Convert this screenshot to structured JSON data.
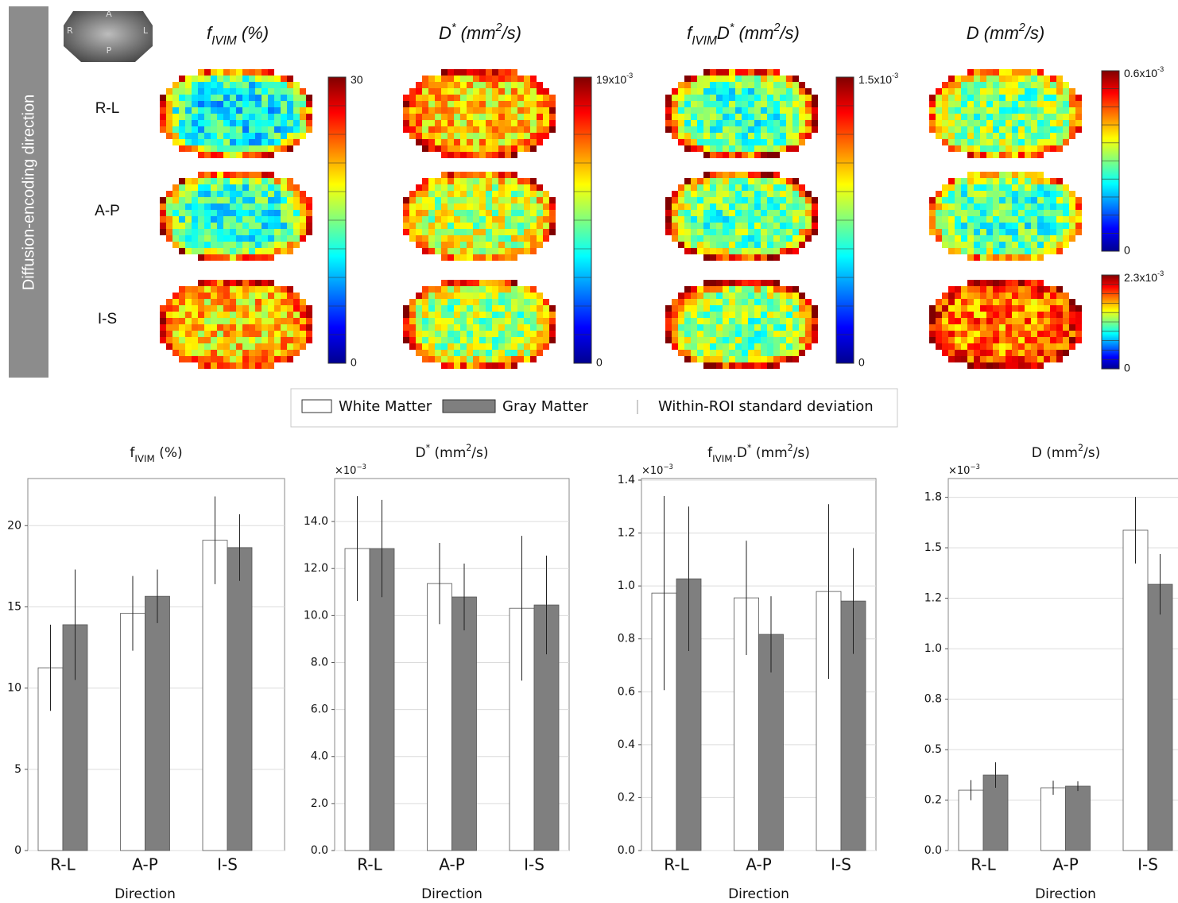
{
  "header": {
    "axis_label": "Diffusion-encoding direction",
    "orientation": {
      "anterior": "A",
      "posterior": "P",
      "right": "R",
      "left": "L"
    }
  },
  "maps": {
    "rows": [
      "R-L",
      "A-P",
      "I-S"
    ],
    "columns": [
      {
        "title": [
          {
            "text": "f"
          },
          {
            "text": "IVIM",
            "style": "sub"
          },
          {
            "text": " (%)"
          }
        ],
        "colorbars": [
          {
            "max": [
              {
                "text": "30"
              }
            ],
            "min": "0"
          }
        ]
      },
      {
        "title": [
          {
            "text": "D"
          },
          {
            "text": "*",
            "style": "sup"
          },
          {
            "text": " (mm"
          },
          {
            "text": "2",
            "style": "sup"
          },
          {
            "text": "/s)"
          }
        ],
        "colorbars": [
          {
            "max": [
              {
                "text": "19x10"
              },
              {
                "text": "-3",
                "style": "sup"
              }
            ],
            "min": "0"
          }
        ]
      },
      {
        "title": [
          {
            "text": "f"
          },
          {
            "text": "IVIM",
            "style": "sub"
          },
          {
            "text": "D"
          },
          {
            "text": "*",
            "style": "sup"
          },
          {
            "text": " (mm"
          },
          {
            "text": "2",
            "style": "sup"
          },
          {
            "text": "/s)"
          }
        ],
        "colorbars": [
          {
            "max": [
              {
                "text": "1.5x10"
              },
              {
                "text": "-3",
                "style": "sup"
              }
            ],
            "min": "0"
          }
        ]
      },
      {
        "title": [
          {
            "text": "D (mm"
          },
          {
            "text": "2",
            "style": "sup"
          },
          {
            "text": "/s)"
          }
        ],
        "colorbars": [
          {
            "max": [
              {
                "text": "0.6x10"
              },
              {
                "text": "-3",
                "style": "sup"
              }
            ],
            "min": "0"
          },
          {
            "max": [
              {
                "text": "2.3x10"
              },
              {
                "text": "-3",
                "style": "sup"
              }
            ],
            "min": "0"
          }
        ]
      }
    ]
  },
  "legend": {
    "names": [
      "White Matter",
      "Gray Matter"
    ],
    "error_label": "Within-ROI standard deviation"
  },
  "chart_data": [
    {
      "type": "bar",
      "title": [
        {
          "text": "f"
        },
        {
          "text": "IVIM",
          "style": "sub"
        },
        {
          "text": " (%)"
        }
      ],
      "xlabel": "Direction",
      "categories": [
        "R-L",
        "A-P",
        "I-S"
      ],
      "series": [
        {
          "color": "#ffffff",
          "values": [
            11.25,
            14.6,
            19.1
          ],
          "errors": [
            2.65,
            2.3,
            2.7
          ]
        },
        {
          "color": "#7f7f7f",
          "values": [
            13.9,
            15.65,
            18.65
          ],
          "errors": [
            3.4,
            1.65,
            2.05
          ]
        }
      ],
      "ylim": [
        0,
        22.9
      ],
      "yticks": [
        0,
        5,
        10,
        15,
        20
      ],
      "grid": true
    },
    {
      "type": "bar",
      "title": [
        {
          "text": "D"
        },
        {
          "text": "*",
          "style": "sup"
        },
        {
          "text": " (mm"
        },
        {
          "text": "2",
          "style": "sup"
        },
        {
          "text": "/s)"
        }
      ],
      "offset_label": [
        {
          "text": "×10"
        },
        {
          "text": "−3",
          "style": "sup"
        }
      ],
      "xlabel": "Direction",
      "categories": [
        "R-L",
        "A-P",
        "I-S"
      ],
      "series": [
        {
          "color": "#ffffff",
          "values": [
            12.85,
            11.36,
            10.31
          ],
          "errors": [
            2.23,
            1.73,
            3.08
          ]
        },
        {
          "color": "#7f7f7f",
          "values": [
            12.85,
            10.79,
            10.45
          ],
          "errors": [
            2.07,
            1.42,
            2.1
          ]
        }
      ],
      "ylim": [
        0,
        15.83
      ],
      "yticks": [
        {
          "value": 0,
          "label": "0.0"
        },
        {
          "value": 2,
          "label": "2.0"
        },
        {
          "value": 4,
          "label": "4.0"
        },
        {
          "value": 6,
          "label": "6.0"
        },
        {
          "value": 8,
          "label": "8.0"
        },
        {
          "value": 10,
          "label": "10.0"
        },
        {
          "value": 12,
          "label": "12.0"
        },
        {
          "value": 14,
          "label": "14.0"
        }
      ],
      "grid": true
    },
    {
      "type": "bar",
      "title": [
        {
          "text": "f"
        },
        {
          "text": "IVIM",
          "style": "sub"
        },
        {
          "text": ".D"
        },
        {
          "text": "*",
          "style": "sup"
        },
        {
          "text": " (mm"
        },
        {
          "text": "2",
          "style": "sup"
        },
        {
          "text": "/s)"
        }
      ],
      "offset_label": [
        {
          "text": "×10"
        },
        {
          "text": "−3",
          "style": "sup"
        }
      ],
      "xlabel": "Direction",
      "categories": [
        "R-L",
        "A-P",
        "I-S"
      ],
      "series": [
        {
          "color": "#ffffff",
          "values": [
            0.973,
            0.955,
            0.979
          ],
          "errors": [
            0.367,
            0.216,
            0.33
          ]
        },
        {
          "color": "#7f7f7f",
          "values": [
            1.027,
            0.817,
            0.943
          ],
          "errors": [
            0.273,
            0.144,
            0.2
          ]
        }
      ],
      "ylim": [
        0,
        1.406
      ],
      "yticks": [
        {
          "value": 0,
          "label": "0.0"
        },
        0.2,
        0.4,
        0.6,
        0.8,
        {
          "value": 1,
          "label": "1.0"
        },
        1.2,
        1.4
      ],
      "grid": true
    },
    {
      "type": "bar",
      "title": [
        {
          "text": "D (mm"
        },
        {
          "text": "2",
          "style": "sup"
        },
        {
          "text": "/s)"
        }
      ],
      "offset_label": [
        {
          "text": "×10"
        },
        {
          "text": "−3",
          "style": "sup"
        }
      ],
      "xlabel": "Direction",
      "categories": [
        "R-L",
        "A-P",
        "I-S"
      ],
      "series": [
        {
          "color": "#ffffff",
          "values": [
            0.299,
            0.311,
            1.587
          ],
          "errors": [
            0.05,
            0.035,
            0.165
          ]
        },
        {
          "color": "#7f7f7f",
          "values": [
            0.374,
            0.319,
            1.319
          ],
          "errors": [
            0.063,
            0.024,
            0.15
          ]
        }
      ],
      "ylim": [
        0,
        1.843
      ],
      "yticks": [
        {
          "value": 0,
          "label": "0.0"
        },
        {
          "value": 0.25,
          "label": "0.2"
        },
        {
          "value": 0.5,
          "label": "0.5"
        },
        {
          "value": 0.75,
          "label": "0.8"
        },
        {
          "value": 1,
          "label": "1.0"
        },
        {
          "value": 1.25,
          "label": "1.2"
        },
        {
          "value": 1.5,
          "label": "1.5"
        },
        {
          "value": 1.75,
          "label": "1.8"
        }
      ],
      "grid": true
    }
  ]
}
